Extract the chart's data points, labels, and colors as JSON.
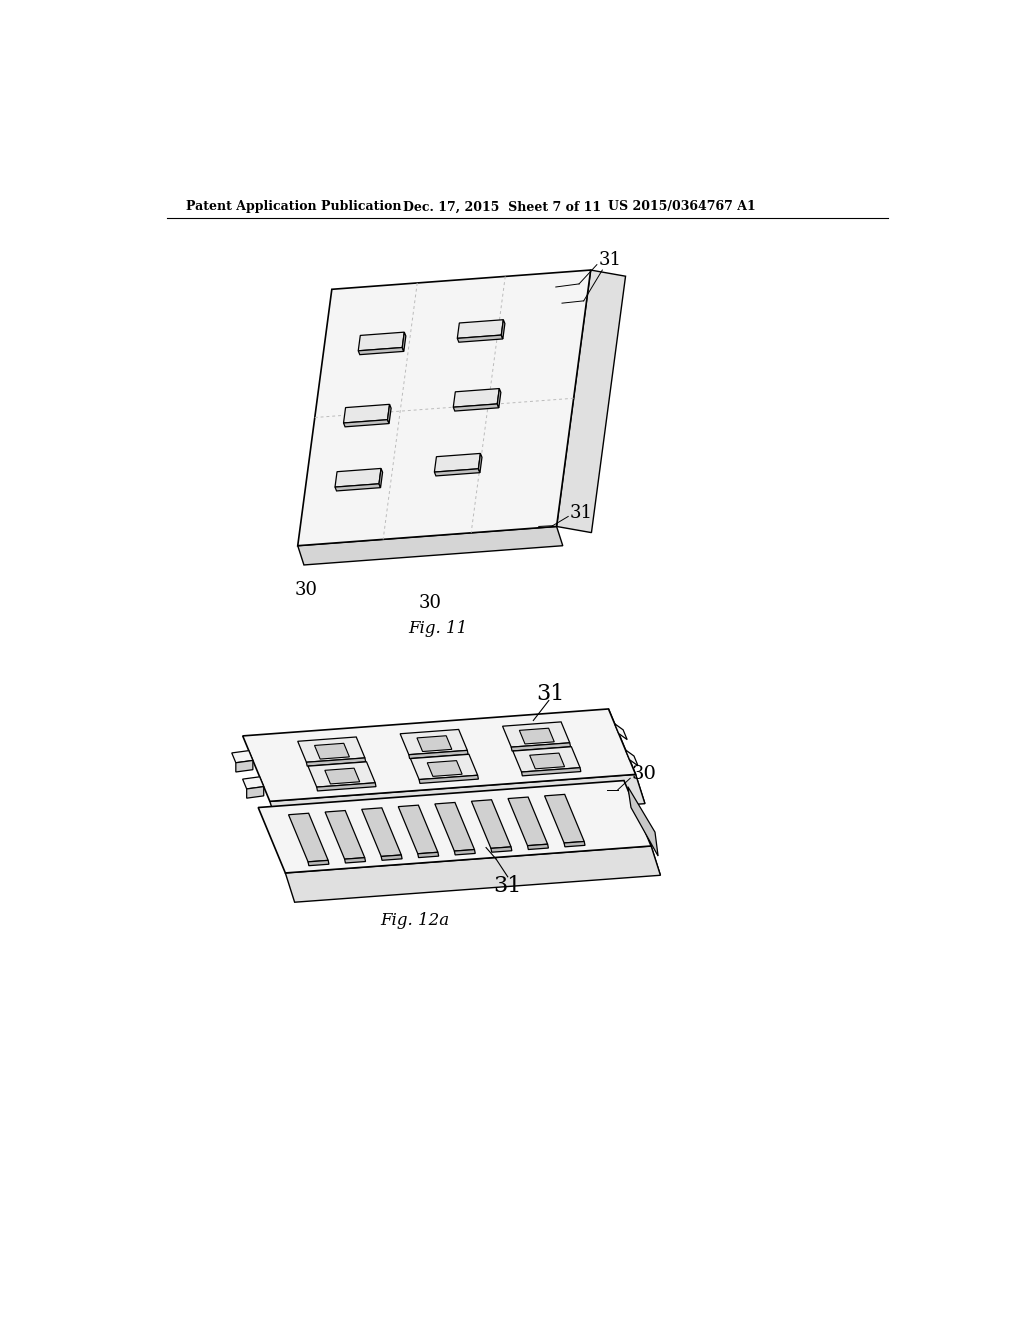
{
  "background_color": "#ffffff",
  "header_left": "Patent Application Publication",
  "header_mid": "Dec. 17, 2015  Sheet 7 of 11",
  "header_right": "US 2015/0364767 A1",
  "fig11_caption": "Fig. 11",
  "fig12a_caption": "Fig. 12a",
  "line_color": "#000000",
  "face_color_top": "#f5f5f5",
  "face_color_side_r": "#e0e0e0",
  "face_color_side_b": "#e8e8e8",
  "slot_top_color": "#d8d8d8",
  "slot_front_color": "#bbbbbb",
  "dot_color": "#cccccc"
}
